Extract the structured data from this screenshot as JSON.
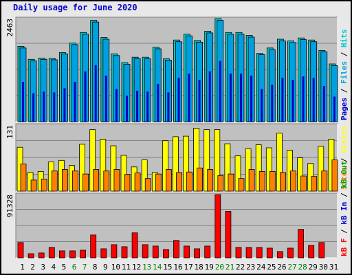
{
  "chart_data": {
    "type": "bar",
    "title": "Daily usage for June 2020",
    "categories": [
      "1",
      "2",
      "3",
      "4",
      "5",
      "6",
      "7",
      "8",
      "9",
      "10",
      "11",
      "12",
      "13",
      "14",
      "15",
      "16",
      "17",
      "18",
      "19",
      "20",
      "21",
      "22",
      "23",
      "24",
      "25",
      "26",
      "27",
      "28",
      "29",
      "30",
      "31"
    ],
    "weekend_days": [
      "6",
      "7",
      "13",
      "14",
      "20",
      "21",
      "27",
      "28"
    ],
    "colors": {
      "hits": "#00c8c8",
      "files": "#00a0e0",
      "pages": "#0000c8",
      "visits": "#ffff00",
      "sites": "#ff8000",
      "kb_in": "#0000c8",
      "kb_out": "#00a000",
      "kb_f": "#ff0000",
      "title": "#0000c8",
      "weekend": "#008000",
      "plot_bg": "#c0c0c0",
      "frame": "#e8e8e8"
    },
    "panels": [
      {
        "id": "hits",
        "ymax_label": "2463",
        "ylim": [
          0,
          2463
        ],
        "side_label": [
          {
            "text": "Pages",
            "color": "#0000c8"
          },
          {
            "text": " / ",
            "color": "#000000"
          },
          {
            "text": "Files",
            "color": "#00a0e0"
          },
          {
            "text": " / ",
            "color": "#000000"
          },
          {
            "text": "Hits",
            "color": "#00c8c8"
          }
        ],
        "series": [
          {
            "name": "Hits",
            "color": "#00c8c8",
            "values": [
              1800,
              1490,
              1520,
              1510,
              1650,
              1880,
              2130,
              2420,
              2010,
              1620,
              1410,
              1540,
              1540,
              1780,
              1500,
              1950,
              2090,
              1940,
              2160,
              2463,
              2130,
              2130,
              2060,
              1630,
              1760,
              1970,
              1930,
              2000,
              1950,
              1700,
              1380
            ]
          },
          {
            "name": "Files",
            "color": "#00a0e0",
            "values": [
              1760,
              1450,
              1490,
              1480,
              1620,
              1840,
              2090,
              2380,
              1970,
              1580,
              1370,
              1510,
              1500,
              1740,
              1470,
              1910,
              2050,
              1900,
              2120,
              2420,
              2090,
              2090,
              2020,
              1600,
              1720,
              1930,
              1890,
              1960,
              1910,
              1670,
              1340
            ]
          },
          {
            "name": "Pages",
            "color": "#0000c8",
            "values": [
              950,
              680,
              720,
              700,
              800,
              950,
              1200,
              1350,
              1100,
              780,
              620,
              740,
              720,
              900,
              700,
              1050,
              1150,
              1000,
              1200,
              1450,
              1150,
              1150,
              1100,
              780,
              880,
              1050,
              1000,
              1080,
              1050,
              850,
              600
            ]
          }
        ]
      },
      {
        "id": "visits",
        "ymax_label": "131",
        "ylim": [
          0,
          131
        ],
        "side_label": [
          {
            "text": "Sites",
            "color": "#ff8000"
          },
          {
            "text": " / ",
            "color": "#000000"
          },
          {
            "text": "Visits",
            "color": "#ffff00"
          }
        ],
        "series": [
          {
            "name": "Visits",
            "color": "#ffff00",
            "values": [
              87,
              37,
              39,
              58,
              61,
              51,
              93,
              122,
              103,
              90,
              71,
              48,
              62,
              37,
              100,
              108,
              109,
              125,
              122,
              122,
              94,
              70,
              84,
              92,
              86,
              115,
              81,
              66,
              55,
              89,
              103
            ]
          },
          {
            "name": "Sites",
            "color": "#ff8000",
            "values": [
              54,
              22,
              24,
              40,
              43,
              40,
              34,
              43,
              40,
              43,
              33,
              36,
              25,
              34,
              43,
              37,
              38,
              46,
              43,
              31,
              34,
              25,
              43,
              39,
              39,
              37,
              40,
              30,
              29,
              40,
              62
            ]
          }
        ]
      },
      {
        "id": "kb",
        "ymax_label": "91328",
        "ylim": [
          0,
          91328
        ],
        "side_label": [
          {
            "text": "kB F",
            "color": "#ff0000"
          },
          {
            "text": " / ",
            "color": "#000000"
          },
          {
            "text": "kB In",
            "color": "#0000c8"
          },
          {
            "text": " / ",
            "color": "#000000"
          },
          {
            "text": "kB Out",
            "color": "#00a000"
          }
        ],
        "series": [
          {
            "name": "kB F",
            "color": "#ff0000",
            "values": [
              22000,
              6000,
              7000,
              15000,
              10000,
              10000,
              11000,
              33000,
              13000,
              19000,
              16000,
              36000,
              19000,
              17000,
              12000,
              25000,
              17000,
              13000,
              17000,
              91328,
              67000,
              15000,
              15000,
              15000,
              14000,
              9000,
              14000,
              41000,
              18000,
              22000,
              0
            ]
          }
        ]
      }
    ]
  }
}
